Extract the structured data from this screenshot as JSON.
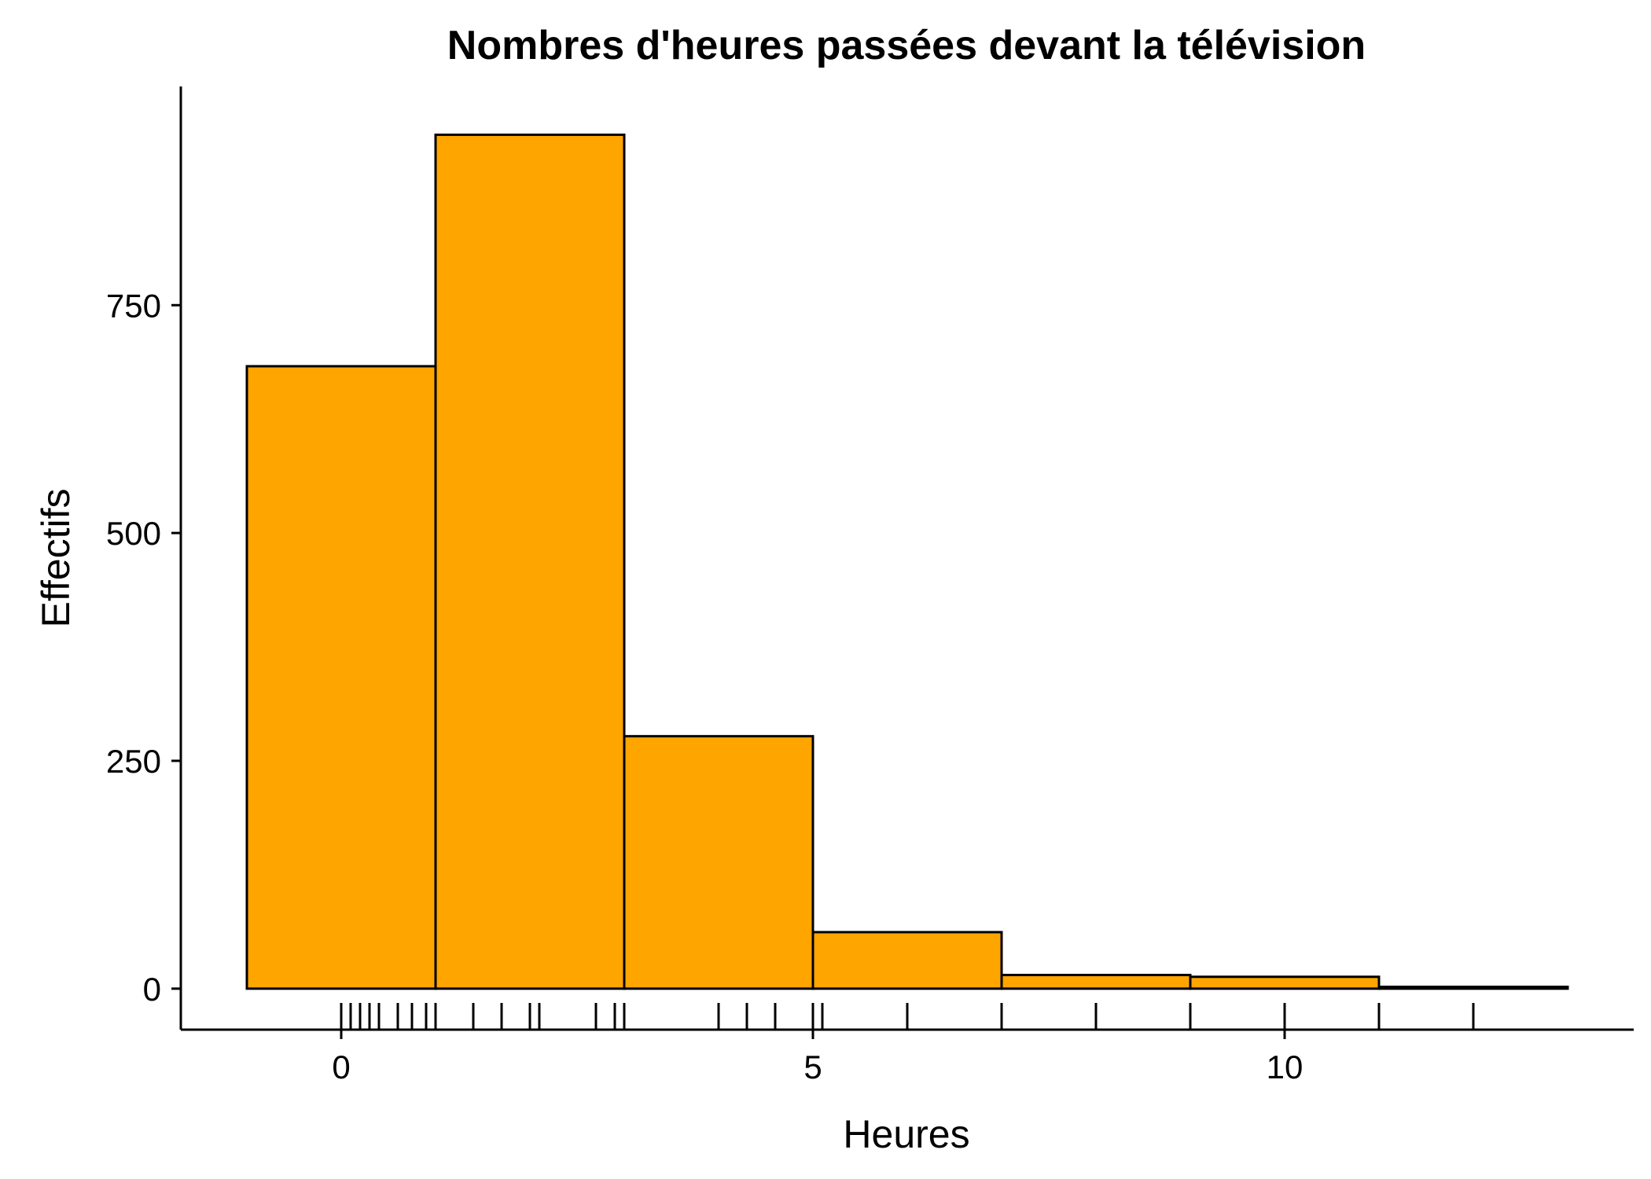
{
  "chart_data": {
    "type": "bar",
    "title": "Nombres d'heures passées devant la télévision",
    "xlabel": "Heures",
    "ylabel": "Effectifs",
    "fill_color": "#FFA500",
    "outline_color": "#000000",
    "xlim": [
      -1.7,
      13.7
    ],
    "ylim": [
      -45,
      990
    ],
    "x_ticks": [
      0,
      5,
      10
    ],
    "y_ticks": [
      0,
      250,
      500,
      750
    ],
    "grid": false,
    "legend": "none",
    "bins": [
      {
        "from": -1,
        "to": 1,
        "count": 683
      },
      {
        "from": 1,
        "to": 3,
        "count": 937
      },
      {
        "from": 3,
        "to": 5,
        "count": 277
      },
      {
        "from": 5,
        "to": 7,
        "count": 62
      },
      {
        "from": 7,
        "to": 9,
        "count": 15
      },
      {
        "from": 9,
        "to": 11,
        "count": 13
      },
      {
        "from": 11,
        "to": 13,
        "count": 2
      }
    ],
    "rug_values": [
      0,
      0.1,
      0.2,
      0.3,
      0.4,
      0.6,
      0.75,
      0.9,
      1,
      1.4,
      1.7,
      2,
      2.1,
      2.7,
      2.9,
      3,
      4,
      4.3,
      4.6,
      5,
      5.1,
      6,
      7,
      8,
      9,
      10,
      11,
      12
    ]
  }
}
